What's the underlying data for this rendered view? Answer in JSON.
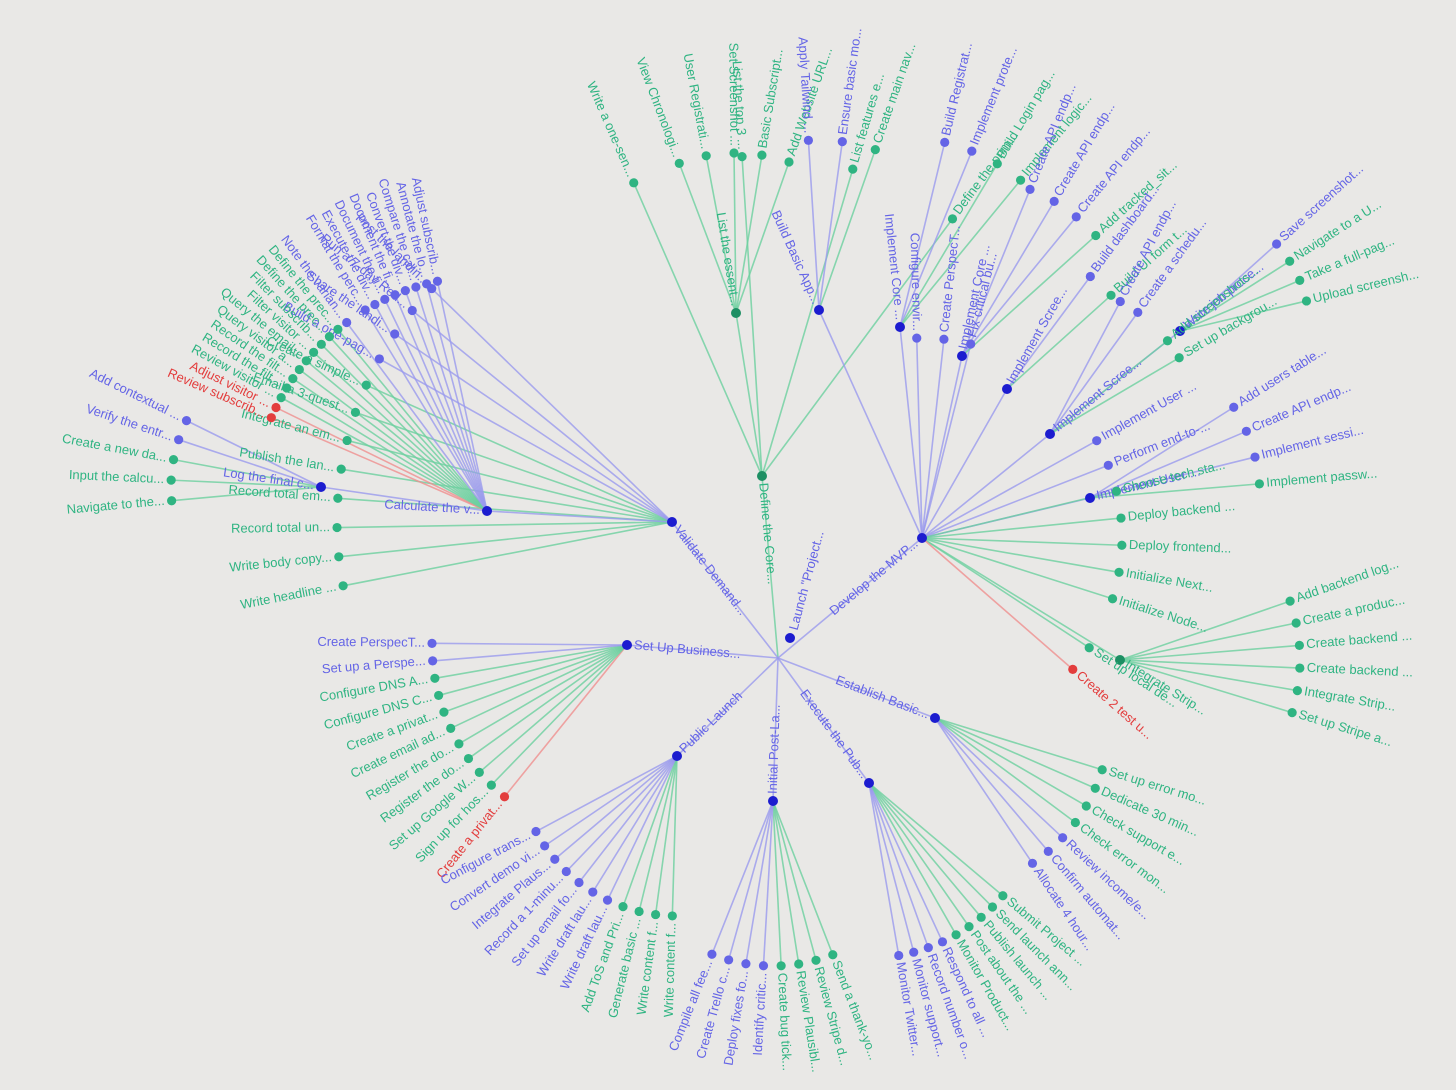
{
  "colors": {
    "blue": "#6464e6",
    "green": "#2fb482",
    "red": "#e33d3d",
    "blue_link": "#9a9aee",
    "green_link": "#6ccf9f",
    "red_link": "#ef8e8e",
    "root": "#1c1ccf"
  },
  "root": "Launch \"Project...",
  "branches": [
    {
      "label": "Define the Core...",
      "color": "green",
      "link": "green",
      "children": [
        {
          "label": "List the essent...",
          "color": "green",
          "link": "green",
          "children": [
            {
              "label": "View Chronologi...",
              "color": "green",
              "link": "green"
            },
            {
              "label": "User Registrati...",
              "color": "green",
              "link": "green"
            },
            {
              "label": "Set Screenshot ...",
              "color": "green",
              "link": "green"
            },
            {
              "label": "Basic Subscript...",
              "color": "green",
              "link": "green"
            },
            {
              "label": "Add Website URL...",
              "color": "green",
              "link": "green"
            }
          ]
        },
        {
          "label": "Write a one-sen...",
          "color": "green",
          "link": "green"
        },
        {
          "label": "List the top 3 ...",
          "color": "green",
          "link": "green"
        },
        {
          "label": "List features e...",
          "color": "green",
          "link": "green"
        },
        {
          "label": "Define the prim...",
          "color": "green",
          "link": "green"
        }
      ]
    },
    {
      "label": "Validate Demand...",
      "color": "blue",
      "link": "blue",
      "children": [
        {
          "label": "Write headline ...",
          "color": "green",
          "link": "green"
        },
        {
          "label": "Write body copy...",
          "color": "green",
          "link": "green"
        },
        {
          "label": "Record total un...",
          "color": "green",
          "link": "green"
        },
        {
          "label": "Record total em...",
          "color": "green",
          "link": "green"
        },
        {
          "label": "Publish the lan...",
          "color": "green",
          "link": "green"
        },
        {
          "label": "Integrate an em...",
          "color": "green",
          "link": "green"
        },
        {
          "label": "Email a 3-quest...",
          "color": "green",
          "link": "green"
        },
        {
          "label": "Create a simple...",
          "color": "green",
          "link": "green"
        },
        {
          "label": "Build a one-pag...",
          "color": "blue",
          "link": "blue"
        },
        {
          "label": "Share the landi...",
          "color": "blue",
          "link": "blue"
        },
        {
          "label": "Run a 7-day Red...",
          "color": "blue",
          "link": "blue"
        },
        {
          "label": "Post the landin...",
          "color": "blue",
          "link": "blue"
        },
        {
          "label": "Calculate the v...",
          "color": "blue",
          "link": "blue",
          "children": [
            {
              "label": "Review subscrib...",
              "color": "red",
              "link": "red"
            },
            {
              "label": "Adjust visitor ...",
              "color": "red",
              "link": "red"
            },
            {
              "label": "Review visitor ...",
              "color": "green",
              "link": "green"
            },
            {
              "label": "Record the filt...",
              "color": "green",
              "link": "green"
            },
            {
              "label": "Record the filt...",
              "color": "green",
              "link": "green"
            },
            {
              "label": "Query visitor a...",
              "color": "green",
              "link": "green"
            },
            {
              "label": "Query the email...",
              "color": "green",
              "link": "green"
            },
            {
              "label": "Filter visitor ...",
              "color": "green",
              "link": "green"
            },
            {
              "label": "Filter subscrib...",
              "color": "green",
              "link": "green"
            },
            {
              "label": "Define the prec...",
              "color": "green",
              "link": "green"
            },
            {
              "label": "Define the prec...",
              "color": "green",
              "link": "green"
            },
            {
              "label": "Note the varian...",
              "color": "blue",
              "link": "blue"
            },
            {
              "label": "Log the final c...",
              "color": "blue",
              "link": "blue",
              "children": [
                {
                  "label": "Navigate to the...",
                  "color": "green",
                  "link": "green"
                },
                {
                  "label": "Input the calcu...",
                  "color": "green",
                  "link": "green"
                },
                {
                  "label": "Create a new da...",
                  "color": "green",
                  "link": "green"
                },
                {
                  "label": "Verify the entr...",
                  "color": "blue",
                  "link": "blue"
                },
                {
                  "label": "Add contextual ...",
                  "color": "blue",
                  "link": "blue"
                }
              ]
            },
            {
              "label": "Format the perc...",
              "color": "blue",
              "link": "blue"
            },
            {
              "label": "Execute the div...",
              "color": "blue",
              "link": "blue"
            },
            {
              "label": "Document the fi...",
              "color": "blue",
              "link": "blue"
            },
            {
              "label": "Document the fi...",
              "color": "blue",
              "link": "blue"
            },
            {
              "label": "Convert the div...",
              "color": "blue",
              "link": "blue"
            },
            {
              "label": "Compare the cal...",
              "color": "blue",
              "link": "blue"
            },
            {
              "label": "Annotate the lo...",
              "color": "blue",
              "link": "blue"
            },
            {
              "label": "Adjust subscrib...",
              "color": "blue",
              "link": "blue"
            }
          ]
        }
      ]
    },
    {
      "label": "Set Up Business...",
      "color": "blue",
      "link": "blue",
      "children": [
        {
          "label": "Create a privat...",
          "color": "red",
          "link": "red"
        },
        {
          "label": "Sign up for hos...",
          "color": "green",
          "link": "green"
        },
        {
          "label": "Set up Google W...",
          "color": "green",
          "link": "green"
        },
        {
          "label": "Register the do...",
          "color": "green",
          "link": "green"
        },
        {
          "label": "Register the do...",
          "color": "green",
          "link": "green"
        },
        {
          "label": "Create email ad...",
          "color": "green",
          "link": "green"
        },
        {
          "label": "Create a privat...",
          "color": "green",
          "link": "green"
        },
        {
          "label": "Configure DNS C...",
          "color": "green",
          "link": "green"
        },
        {
          "label": "Configure DNS A...",
          "color": "green",
          "link": "green"
        },
        {
          "label": "Set up a Perspe...",
          "color": "blue",
          "link": "blue"
        },
        {
          "label": "Create PerspecT...",
          "color": "blue",
          "link": "blue"
        }
      ]
    },
    {
      "label": "Public Launch",
      "color": "blue",
      "link": "blue",
      "children": [
        {
          "label": "Write content f...",
          "color": "green",
          "link": "green"
        },
        {
          "label": "Write content f...",
          "color": "green",
          "link": "green"
        },
        {
          "label": "Generate basic ...",
          "color": "green",
          "link": "green"
        },
        {
          "label": "Add ToS and Pri...",
          "color": "green",
          "link": "green"
        },
        {
          "label": "Write draft lau...",
          "color": "blue",
          "link": "blue"
        },
        {
          "label": "Write draft lau...",
          "color": "blue",
          "link": "blue"
        },
        {
          "label": "Set up email fo...",
          "color": "blue",
          "link": "blue"
        },
        {
          "label": "Record a 1-minu...",
          "color": "blue",
          "link": "blue"
        },
        {
          "label": "Integrate Plaus...",
          "color": "blue",
          "link": "blue"
        },
        {
          "label": "Convert demo vi...",
          "color": "blue",
          "link": "blue"
        },
        {
          "label": "Configure trans...",
          "color": "blue",
          "link": "blue"
        }
      ]
    },
    {
      "label": "Initial Post-La...",
      "color": "blue",
      "link": "blue",
      "children": [
        {
          "label": "Send a thank-yo...",
          "color": "green",
          "link": "green"
        },
        {
          "label": "Review Stripe d...",
          "color": "green",
          "link": "green"
        },
        {
          "label": "Review Plausibl...",
          "color": "green",
          "link": "green"
        },
        {
          "label": "Create bug tick...",
          "color": "green",
          "link": "green"
        },
        {
          "label": "Identify critic...",
          "color": "blue",
          "link": "blue"
        },
        {
          "label": "Deploy fixes fo...",
          "color": "blue",
          "link": "blue"
        },
        {
          "label": "Create Trello c...",
          "color": "blue",
          "link": "blue"
        },
        {
          "label": "Compile all fee...",
          "color": "blue",
          "link": "blue"
        }
      ]
    },
    {
      "label": "Execute the Pub...",
      "color": "blue",
      "link": "blue",
      "children": [
        {
          "label": "Submit Project ...",
          "color": "green",
          "link": "green"
        },
        {
          "label": "Send launch ann...",
          "color": "green",
          "link": "green"
        },
        {
          "label": "Publish launch ...",
          "color": "green",
          "link": "green"
        },
        {
          "label": "Post about the ...",
          "color": "green",
          "link": "green"
        },
        {
          "label": "Monitor Product...",
          "color": "green",
          "link": "green"
        },
        {
          "label": "Respond to all ...",
          "color": "blue",
          "link": "blue"
        },
        {
          "label": "Record number o...",
          "color": "blue",
          "link": "blue"
        },
        {
          "label": "Monitor support...",
          "color": "blue",
          "link": "blue"
        },
        {
          "label": "Monitor Twitter...",
          "color": "blue",
          "link": "blue"
        }
      ]
    },
    {
      "label": "Establish Basic...",
      "color": "blue",
      "link": "blue",
      "children": [
        {
          "label": "Set up error mo...",
          "color": "green",
          "link": "green"
        },
        {
          "label": "Dedicate 30 min...",
          "color": "green",
          "link": "green"
        },
        {
          "label": "Check support e...",
          "color": "green",
          "link": "green"
        },
        {
          "label": "Check error mon...",
          "color": "green",
          "link": "green"
        },
        {
          "label": "Review income/e...",
          "color": "blue",
          "link": "blue"
        },
        {
          "label": "Confirm automat...",
          "color": "blue",
          "link": "blue"
        },
        {
          "label": "Allocate 4 hour...",
          "color": "blue",
          "link": "blue"
        }
      ]
    },
    {
      "label": "Develop the MVP...",
      "color": "blue",
      "link": "blue",
      "children": [
        {
          "label": "Build Basic App...",
          "color": "blue",
          "link": "blue",
          "children": [
            {
              "label": "Apply Tailwind ...",
              "color": "blue",
              "link": "blue"
            },
            {
              "label": "Ensure basic mo...",
              "color": "blue",
              "link": "blue"
            },
            {
              "label": "Create main nav...",
              "color": "green",
              "link": "green"
            }
          ]
        },
        {
          "label": "Configure envir...",
          "color": "blue",
          "link": "blue"
        },
        {
          "label": "Create PerspecT...",
          "color": "blue",
          "link": "blue"
        },
        {
          "label": "Fix critical bu...",
          "color": "blue",
          "link": "blue"
        },
        {
          "label": "Implement Core ...",
          "color": "blue",
          "link": "blue",
          "children": [
            {
              "label": "Build Registrat...",
              "color": "blue",
              "link": "blue"
            },
            {
              "label": "Implement prote...",
              "color": "blue",
              "link": "blue"
            },
            {
              "label": "Build Login pag...",
              "color": "green",
              "link": "green"
            },
            {
              "label": "Implement logic...",
              "color": "green",
              "link": "green"
            }
          ]
        },
        {
          "label": "Implement Core ...",
          "color": "blue",
          "link": "blue",
          "children": [
            {
              "label": "Create API endp...",
              "color": "blue",
              "link": "blue"
            },
            {
              "label": "Create API endp...",
              "color": "blue",
              "link": "blue"
            },
            {
              "label": "Create API endp...",
              "color": "blue",
              "link": "blue"
            },
            {
              "label": "Add tracked_sit...",
              "color": "green",
              "link": "green"
            }
          ]
        },
        {
          "label": "Implement Scree...",
          "color": "blue",
          "link": "blue",
          "children": [
            {
              "label": "Build dashboard...",
              "color": "blue",
              "link": "blue"
            },
            {
              "label": "Build UI form t...",
              "color": "green",
              "link": "green"
            }
          ]
        },
        {
          "label": "Implement Scree...",
          "color": "blue",
          "link": "blue",
          "children": [
            {
              "label": "Create API endp...",
              "color": "blue",
              "link": "blue"
            },
            {
              "label": "Create a schedu...",
              "color": "blue",
              "link": "blue"
            },
            {
              "label": "Write job proce...",
              "color": "blue",
              "link": "blue",
              "children": [
                {
                  "label": "Save screenshot...",
                  "color": "blue",
                  "link": "blue"
                },
                {
                  "label": "Navigate to a U...",
                  "color": "green",
                  "link": "green"
                },
                {
                  "label": "Take a full-pag...",
                  "color": "green",
                  "link": "green"
                },
                {
                  "label": "Upload screensh...",
                  "color": "green",
                  "link": "green"
                }
              ]
            },
            {
              "label": "Add screenshots...",
              "color": "green",
              "link": "green"
            },
            {
              "label": "Set up backgrou...",
              "color": "green",
              "link": "green"
            }
          ]
        },
        {
          "label": "Implement User ...",
          "color": "blue",
          "link": "blue",
          "children": [
            {
              "label": "Add users table...",
              "color": "blue",
              "link": "blue"
            },
            {
              "label": "Create API endp...",
              "color": "blue",
              "link": "blue"
            },
            {
              "label": "Implement sessi...",
              "color": "blue",
              "link": "blue"
            },
            {
              "label": "Implement passw...",
              "color": "green",
              "link": "green"
            }
          ]
        },
        {
          "label": "Implement User ...",
          "color": "blue",
          "link": "blue"
        },
        {
          "label": "Perform end-to-...",
          "color": "blue",
          "link": "blue"
        },
        {
          "label": "Choose tech sta...",
          "color": "green",
          "link": "green"
        },
        {
          "label": "Deploy backend ...",
          "color": "green",
          "link": "green"
        },
        {
          "label": "Deploy frontend...",
          "color": "green",
          "link": "green"
        },
        {
          "label": "Initialize Next...",
          "color": "green",
          "link": "green"
        },
        {
          "label": "Initialize Node...",
          "color": "green",
          "link": "green"
        },
        {
          "label": "Integrate Strip...",
          "color": "green",
          "link": "green",
          "children": [
            {
              "label": "Add backend log...",
              "color": "green",
              "link": "green"
            },
            {
              "label": "Create a produc...",
              "color": "green",
              "link": "green"
            },
            {
              "label": "Create backend ...",
              "color": "green",
              "link": "green"
            },
            {
              "label": "Create backend ...",
              "color": "green",
              "link": "green"
            },
            {
              "label": "Integrate Strip...",
              "color": "green",
              "link": "green"
            },
            {
              "label": "Set up Stripe a...",
              "color": "green",
              "link": "green"
            }
          ]
        },
        {
          "label": "Set up local de...",
          "color": "green",
          "link": "green"
        },
        {
          "label": "Create 2 test u...",
          "color": "red",
          "link": "red"
        }
      ]
    }
  ]
}
